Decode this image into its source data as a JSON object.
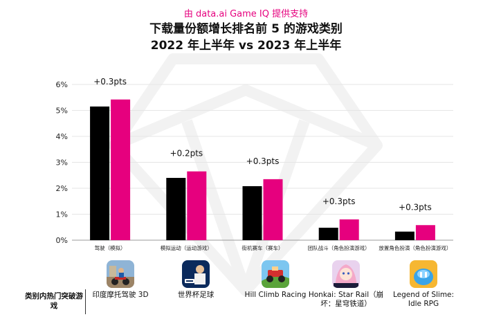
{
  "header": {
    "source": "由 data.ai Game IQ 提供支持",
    "title_line1": "下载量份额增长排名前 5 的游戏类别",
    "title_line2": "2022 年上半年 vs 2023 年上半年"
  },
  "colors": {
    "h1_2022": "#000000",
    "h1_2023": "#e6007e",
    "grid": "#e5e5e5",
    "source": "#e6007e"
  },
  "chart_data": {
    "type": "bar",
    "categories": [
      "驾驶（模拟）",
      "模拟运动（运动游戏）",
      "街机赛车（赛车）",
      "团队战斗（角色扮演游戏）",
      "放置角色扮演（角色扮演游戏）"
    ],
    "series": [
      {
        "values": [
          5.15,
          2.4,
          2.08,
          0.48,
          0.33
        ]
      },
      {
        "values": [
          5.42,
          2.65,
          2.35,
          0.8,
          0.58
        ]
      }
    ],
    "annotations": [
      "+0.3pts",
      "+0.2pts",
      "+0.3pts",
      "+0.3pts",
      "+0.3pts"
    ],
    "yticks": [
      "0%",
      "1%",
      "2%",
      "3%",
      "4%",
      "5%",
      "6%"
    ],
    "ylim": [
      0,
      6
    ],
    "grid": true,
    "legend": "none"
  },
  "games": {
    "row_label": "类别内热门突破游戏",
    "items": [
      {
        "name": "印度摩托驾驶 3D",
        "icon": "motorbike-game-icon"
      },
      {
        "name": "世界杯足球",
        "icon": "fifa-game-icon"
      },
      {
        "name": "Hill Climb Racing",
        "icon": "hill-climb-game-icon"
      },
      {
        "name": "Honkai: Star Rail（崩坏：星穹铁道）",
        "icon": "honkai-game-icon"
      },
      {
        "name": "Legend of Slime: Idle RPG",
        "icon": "slime-game-icon"
      }
    ]
  }
}
